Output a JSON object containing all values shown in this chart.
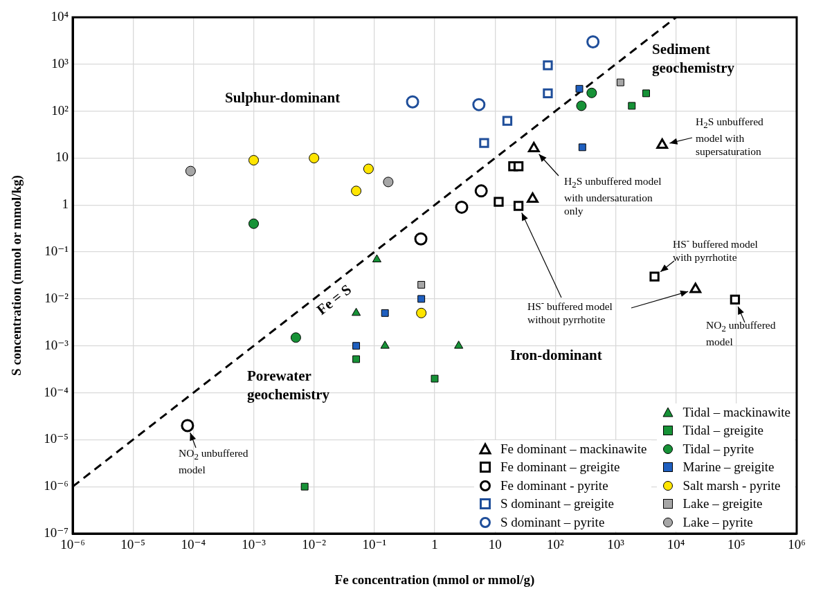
{
  "chart_data": {
    "type": "scatter",
    "xlabel": "Fe concentration (mmol or mmol/g)",
    "ylabel": "S concentration (mmol or mmol/kg)",
    "log": "xy",
    "grid": true,
    "legend": "bottom right",
    "xlim": [
      1e-06,
      1000000.0
    ],
    "ylim": [
      1e-07,
      10000.0
    ],
    "xticks": [
      {
        "value": 1e-06,
        "label": "10⁻⁶"
      },
      {
        "value": 1e-05,
        "label": "10⁻⁵"
      },
      {
        "value": 0.0001,
        "label": "10⁻⁴"
      },
      {
        "value": 0.001,
        "label": "10⁻³"
      },
      {
        "value": 0.01,
        "label": "10⁻²"
      },
      {
        "value": 0.1,
        "label": "10⁻¹"
      },
      1,
      10,
      {
        "value": 100,
        "label": "10²"
      },
      {
        "value": 1000,
        "label": "10³"
      },
      {
        "value": 10000,
        "label": "10⁴"
      },
      {
        "value": 100000,
        "label": "10⁵"
      },
      {
        "value": 1000000,
        "label": "10⁶"
      }
    ],
    "yticks": [
      {
        "value": 1e-07,
        "label": "10⁻⁷"
      },
      {
        "value": 1e-06,
        "label": "10⁻⁶"
      },
      {
        "value": 1e-05,
        "label": "10⁻⁵"
      },
      {
        "value": 0.0001,
        "label": "10⁻⁴"
      },
      {
        "value": 0.001,
        "label": "10⁻³"
      },
      {
        "value": 0.01,
        "label": "10⁻²"
      },
      {
        "value": 0.1,
        "label": "10⁻¹"
      },
      1,
      10,
      {
        "value": 100,
        "label": "10²"
      },
      {
        "value": 1000,
        "label": "10³"
      },
      {
        "value": 10000,
        "label": "10⁴"
      }
    ],
    "series": [
      {
        "name": "Fe dominant – mackinawite",
        "color": "#000000",
        "marker": "triangle",
        "x": [
          44,
          42,
          5900,
          21000
        ],
        "values": [
          16,
          1.35,
          19,
          0.016
        ]
      },
      {
        "name": "Fe dominant – greigite",
        "color": "#000000",
        "marker": "square",
        "x": [
          20,
          24.5,
          11.5,
          24.5,
          4400,
          95000
        ],
        "values": [
          6.7,
          6.7,
          1.17,
          0.96,
          0.03,
          0.0097
        ]
      },
      {
        "name": "Fe dominant - pyrite",
        "color": "#000000",
        "marker": "circle",
        "x": [
          8e-05,
          0.59,
          2.8,
          5.9
        ],
        "values": [
          2e-05,
          0.19,
          0.9,
          2
        ]
      },
      {
        "name": "S dominant – greigite",
        "color": "#1f4e9a",
        "marker": "square",
        "x": [
          75,
          75,
          16,
          6.6
        ],
        "values": [
          950,
          240,
          62,
          21
        ]
      },
      {
        "name": "S dominant – pyrite",
        "color": "#1f4e9a",
        "marker": "circle",
        "x": [
          0.43,
          5.4,
          420
        ],
        "values": [
          158,
          138,
          3000
        ]
      },
      {
        "name": "Tidal – mackinawite",
        "color": "#179237",
        "marker": "triangle",
        "x": [
          0.11,
          0.05,
          0.15,
          2.5
        ],
        "values": [
          0.069,
          0.005,
          0.001,
          0.001
        ]
      },
      {
        "name": "Tidal – greigite",
        "color": "#179237",
        "marker": "square",
        "x": [
          0.05,
          1,
          0.007,
          3200,
          1850
        ],
        "values": [
          0.00052,
          0.0002,
          1e-06,
          240,
          130
        ]
      },
      {
        "name": "Tidal – pyrite",
        "color": "#179237",
        "marker": "circle",
        "x": [
          0.001,
          0.005,
          400,
          270
        ],
        "values": [
          0.4,
          0.0015,
          245,
          130
        ]
      },
      {
        "name": "Marine – greigite",
        "color": "#1f5fbf",
        "marker": "square",
        "x": [
          0.05,
          0.15,
          0.6,
          250,
          280
        ],
        "values": [
          0.001,
          0.005,
          0.01,
          300,
          17
        ]
      },
      {
        "name": "Salt marsh - pyrite",
        "color": "#ffe500",
        "marker": "circle",
        "x": [
          0.001,
          0.01,
          0.08,
          0.05,
          0.6
        ],
        "values": [
          9,
          10,
          5.9,
          2,
          0.005
        ]
      },
      {
        "name": "Lake – greigite",
        "color": "#a6a6a6",
        "marker": "square",
        "x": [
          0.6,
          1200
        ],
        "values": [
          0.02,
          410
        ]
      },
      {
        "name": "Lake – pyrite",
        "color": "#a6a6a6",
        "marker": "circle",
        "x": [
          9e-05,
          0.17
        ],
        "values": [
          5.3,
          3.1
        ]
      },
      {
        "name": "Fe = S",
        "type": "line",
        "color": "#000000",
        "marker": "none",
        "line_style": "dashed",
        "x": [
          1e-06,
          10000
        ],
        "values": [
          1e-06,
          10000
        ]
      }
    ],
    "annotations": [
      "Sulphur-dominant",
      "Iron-dominant",
      "Sediment geochemistry",
      "Porewater geochemistry",
      "H$_{2}$S unbuffered model with supersaturation",
      "H$_{2}$S unbuffered model with undersaturation only",
      {
        "text": "HS$^{-}$ buffered model with pyrrhotite",
        "x": 4400,
        "y": 0.03
      },
      "HS$^{-}$ buffered model without pyrrhotite",
      "NO$_{2}$ unbuffered model",
      "NO$_{2}$ unbuffered model"
    ]
  }
}
